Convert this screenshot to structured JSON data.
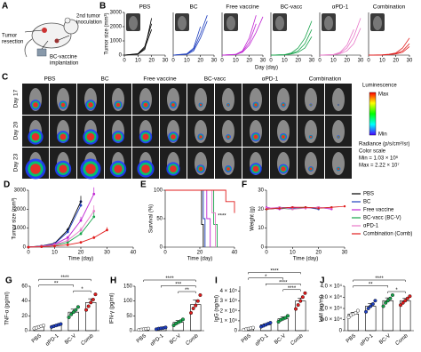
{
  "panel_a": {
    "label": "A",
    "notes": [
      [
        "Tumor",
        "resection"
      ],
      [
        "2nd tumor",
        "inoculation"
      ],
      [
        "BC-vaccine",
        "implantation"
      ]
    ]
  },
  "panel_b": {
    "label": "B",
    "y_label": "Tumor size (mm³)",
    "x_label": "Day (day)"
  },
  "panel_c": {
    "label": "C",
    "columns": [
      "PBS",
      "BC",
      "Free vaccine",
      "BC-vacc",
      "αPD-1",
      "Combination"
    ],
    "rows": [
      "Day 17",
      "Day 20",
      "Day 23"
    ],
    "scale": {
      "title": "Luminescence",
      "max": "Max",
      "min": "Min",
      "unit": "Radiance (p/s/cm²/sr)",
      "color_scale": "Color scale",
      "range_min": "Min = 1.03 × 10⁶",
      "range_max": "Max = 2.22 × 10⁷"
    }
  },
  "chart_data": [
    {
      "type": "spaghetti",
      "title": "PBS",
      "color": "#000000",
      "x": [
        0,
        10,
        15,
        20,
        25,
        30
      ],
      "xlim": [
        0,
        30
      ],
      "xticks": [
        0,
        10,
        20,
        30
      ],
      "ylim": [
        0,
        3000
      ],
      "yticks": [
        0,
        1000,
        2000,
        3000
      ],
      "series": [
        {
          "values": [
            0,
            100,
            600,
            2200,
            null,
            null
          ]
        },
        {
          "values": [
            0,
            80,
            500,
            1800,
            null,
            null
          ]
        },
        {
          "values": [
            0,
            60,
            400,
            2600,
            null,
            null
          ]
        }
      ]
    },
    {
      "type": "spaghetti",
      "title": "BC",
      "color": "#1f3fbf",
      "x": [
        0,
        10,
        15,
        20,
        25,
        30
      ],
      "xlim": [
        0,
        30
      ],
      "xticks": [
        0,
        10,
        20,
        30
      ],
      "ylim": [
        0,
        3000
      ],
      "series": [
        {
          "values": [
            0,
            90,
            500,
            2000,
            null,
            null
          ]
        },
        {
          "values": [
            0,
            70,
            400,
            1500,
            2800,
            null
          ]
        },
        {
          "values": [
            0,
            50,
            300,
            1200,
            2400,
            null
          ]
        }
      ]
    },
    {
      "type": "spaghetti",
      "title": "Free vaccine",
      "color": "#c026d3",
      "x": [
        0,
        10,
        15,
        20,
        25,
        30
      ],
      "xlim": [
        0,
        30
      ],
      "xticks": [
        0,
        10,
        20,
        30
      ],
      "ylim": [
        0,
        3000
      ],
      "series": [
        {
          "values": [
            0,
            50,
            300,
            1200,
            2800,
            null
          ]
        },
        {
          "values": [
            0,
            40,
            250,
            900,
            2200,
            null
          ]
        },
        {
          "values": [
            0,
            30,
            200,
            700,
            1600,
            2700
          ]
        }
      ]
    },
    {
      "type": "spaghetti",
      "title": "BC-vacc",
      "color": "#16a34a",
      "x": [
        0,
        10,
        15,
        20,
        25,
        30
      ],
      "xlim": [
        0,
        30
      ],
      "xticks": [
        0,
        10,
        20,
        30
      ],
      "ylim": [
        0,
        3000
      ],
      "series": [
        {
          "values": [
            0,
            30,
            150,
            500,
            1200,
            2400
          ]
        },
        {
          "values": [
            0,
            20,
            100,
            300,
            800,
            1800
          ]
        },
        {
          "values": [
            0,
            20,
            80,
            200,
            500,
            1300
          ]
        }
      ]
    },
    {
      "type": "spaghetti",
      "title": "αPD-1",
      "color": "#e879c9",
      "x": [
        0,
        10,
        15,
        20,
        25,
        30
      ],
      "xlim": [
        0,
        30
      ],
      "xticks": [
        0,
        10,
        20,
        30
      ],
      "ylim": [
        0,
        3000
      ],
      "series": [
        {
          "values": [
            0,
            40,
            200,
            700,
            1800,
            null
          ]
        },
        {
          "values": [
            0,
            30,
            150,
            500,
            1300,
            2600
          ]
        },
        {
          "values": [
            0,
            20,
            100,
            300,
            800,
            1900
          ]
        }
      ]
    },
    {
      "type": "spaghetti",
      "title": "Combination",
      "color": "#e11d1d",
      "x": [
        0,
        10,
        15,
        20,
        25,
        30
      ],
      "xlim": [
        0,
        30
      ],
      "xticks": [
        0,
        10,
        20,
        30
      ],
      "ylim": [
        0,
        3000
      ],
      "series": [
        {
          "values": [
            0,
            20,
            60,
            150,
            500,
            1200
          ]
        },
        {
          "values": [
            0,
            10,
            40,
            100,
            300,
            800
          ]
        },
        {
          "values": [
            0,
            10,
            30,
            80,
            200,
            600
          ]
        }
      ]
    },
    {
      "type": "errorline",
      "label": "D",
      "y_label": "Tumor size (mm³)",
      "x_label": "Time (day)",
      "legend": "right",
      "x": [
        0,
        5,
        10,
        15,
        20,
        25,
        30,
        35
      ],
      "xlim": [
        0,
        40
      ],
      "xticks": [
        0,
        10,
        20,
        30,
        40
      ],
      "ylim": [
        0,
        3000
      ],
      "yticks": [
        0,
        1000,
        2000,
        3000
      ],
      "series": [
        {
          "name": "PBS",
          "color": "#000000",
          "values": [
            0,
            60,
            200,
            900,
            2400,
            null,
            null,
            null
          ],
          "errors": [
            0,
            10,
            30,
            120,
            300,
            null,
            null,
            null
          ]
        },
        {
          "name": "BC",
          "color": "#1f3fbf",
          "values": [
            0,
            50,
            180,
            800,
            2200,
            null,
            null,
            null
          ],
          "errors": [
            0,
            10,
            30,
            100,
            280,
            null,
            null,
            null
          ]
        },
        {
          "name": "Free vaccine",
          "color": "#c026d3",
          "values": [
            0,
            40,
            150,
            500,
            1400,
            2800,
            null,
            null
          ],
          "errors": [
            0,
            8,
            25,
            80,
            200,
            350,
            null,
            null
          ]
        },
        {
          "name": "BC-vacc (BC-V)",
          "color": "#16a34a",
          "values": [
            0,
            30,
            100,
            250,
            700,
            1600,
            null,
            null
          ],
          "errors": [
            0,
            5,
            20,
            50,
            120,
            250,
            null,
            null
          ]
        },
        {
          "name": "αPD-1",
          "color": "#e879c9",
          "values": [
            0,
            40,
            120,
            350,
            900,
            1900,
            null,
            null
          ],
          "errors": [
            0,
            8,
            20,
            60,
            150,
            300,
            null,
            null
          ]
        },
        {
          "name": "Combination (Comb)",
          "color": "#e11d1d",
          "values": [
            0,
            20,
            60,
            120,
            250,
            500,
            900,
            null
          ],
          "errors": [
            0,
            5,
            10,
            20,
            50,
            90,
            150,
            null
          ]
        }
      ]
    },
    {
      "type": "step",
      "label": "E",
      "y_label": "Survival (%)",
      "x_label": "Time (day)",
      "annotation": "****",
      "xlim": [
        0,
        40
      ],
      "xticks": [
        0,
        20,
        40
      ],
      "ylim": [
        0,
        100
      ],
      "yticks": [
        0,
        50,
        100
      ],
      "series": [
        {
          "color": "#000000",
          "x": [
            0,
            20,
            21,
            22
          ],
          "values": [
            100,
            100,
            40,
            0
          ]
        },
        {
          "color": "#1f3fbf",
          "x": [
            0,
            21,
            22,
            23
          ],
          "values": [
            100,
            100,
            50,
            0
          ]
        },
        {
          "color": "#c026d3",
          "x": [
            0,
            22,
            24,
            26
          ],
          "values": [
            100,
            100,
            50,
            0
          ]
        },
        {
          "color": "#16a34a",
          "x": [
            0,
            26,
            28,
            30
          ],
          "values": [
            100,
            100,
            40,
            0
          ]
        },
        {
          "color": "#e879c9",
          "x": [
            0,
            25,
            27,
            29
          ],
          "values": [
            100,
            100,
            60,
            0
          ]
        },
        {
          "color": "#e11d1d",
          "x": [
            0,
            30,
            35,
            40
          ],
          "values": [
            100,
            100,
            80,
            60
          ]
        }
      ]
    },
    {
      "type": "line",
      "label": "F",
      "y_label": "Weight (g)",
      "x_label": "Time (day)",
      "x": [
        0,
        5,
        10,
        15,
        20,
        25,
        30
      ],
      "xlim": [
        0,
        30
      ],
      "xticks": [
        0,
        10,
        20,
        30
      ],
      "ylim": [
        0,
        30
      ],
      "yticks": [
        0,
        10,
        20,
        30
      ],
      "series": [
        {
          "color": "#000000",
          "values": [
            20,
            20.5,
            21,
            20.5,
            21,
            null,
            null
          ]
        },
        {
          "color": "#1f3fbf",
          "values": [
            20,
            21,
            20.5,
            21,
            20,
            null,
            null
          ]
        },
        {
          "color": "#c026d3",
          "values": [
            21,
            20,
            21,
            20.5,
            21,
            20,
            null
          ]
        },
        {
          "color": "#16a34a",
          "values": [
            20,
            20.5,
            20,
            21,
            20.5,
            21,
            null
          ]
        },
        {
          "color": "#e879c9",
          "values": [
            20.5,
            21,
            20,
            20.5,
            21,
            20.5,
            null
          ]
        },
        {
          "color": "#e11d1d",
          "values": [
            20,
            20.5,
            21,
            21,
            20.5,
            21,
            21.5
          ]
        }
      ]
    },
    {
      "type": "dotbar",
      "label": "G",
      "y_label": "TNF-α (pg/ml)",
      "categories": [
        "PBS",
        "αPD-1",
        "BC-V",
        "Comb"
      ],
      "colors": [
        "#ffffff",
        "#1f3fbf",
        "#16a34a",
        "#e11d1d"
      ],
      "values": [
        5,
        7,
        25,
        38
      ],
      "errors": [
        1,
        1,
        4,
        5
      ],
      "points": [
        [
          3,
          4,
          5,
          6,
          7
        ],
        [
          5,
          6,
          7,
          8,
          9
        ],
        [
          18,
          22,
          25,
          28,
          32
        ],
        [
          28,
          33,
          38,
          42,
          49
        ]
      ],
      "ylim": [
        0,
        60
      ],
      "yticks": [
        0,
        20,
        40,
        60
      ],
      "annotations": [
        {
          "text": "****",
          "between": [
            "PBS",
            "Comb"
          ]
        },
        {
          "text": "**",
          "between": [
            "PBS",
            "BC-V"
          ]
        },
        {
          "text": "*",
          "between": [
            "BC-V",
            "Comb"
          ]
        }
      ]
    },
    {
      "type": "dotbar",
      "label": "H",
      "y_label": "IFN-γ (pg/ml)",
      "categories": [
        "PBS",
        "αPD-1",
        "BC-V",
        "Comb"
      ],
      "colors": [
        "#ffffff",
        "#1f3fbf",
        "#16a34a",
        "#e11d1d"
      ],
      "values": [
        5,
        8,
        28,
        88
      ],
      "errors": [
        1,
        2,
        6,
        15
      ],
      "points": [
        [
          3,
          4,
          5,
          6,
          7
        ],
        [
          5,
          7,
          8,
          9,
          11
        ],
        [
          18,
          24,
          28,
          32,
          38
        ],
        [
          60,
          75,
          85,
          100,
          120
        ]
      ],
      "ylim": [
        0,
        150
      ],
      "yticks": [
        0,
        50,
        100,
        150
      ],
      "annotations": [
        {
          "text": "****",
          "between": [
            "PBS",
            "Comb"
          ]
        },
        {
          "text": "***",
          "between": [
            "αPD-1",
            "Comb"
          ]
        },
        {
          "text": "**",
          "between": [
            "BC-V",
            "Comb"
          ]
        }
      ]
    },
    {
      "type": "dotbar",
      "label": "I",
      "y_label": "IgG (ng/ml)",
      "categories": [
        "PBS",
        "αPD-1",
        "BC-V",
        "Comb"
      ],
      "colors": [
        "#ffffff",
        "#1f3fbf",
        "#16a34a",
        "#e11d1d"
      ],
      "values": [
        20000,
        60000,
        120000,
        300000
      ],
      "errors": [
        5000,
        10000,
        20000,
        30000
      ],
      "points": [
        [
          10000,
          15000,
          20000,
          25000,
          30000
        ],
        [
          40000,
          50000,
          60000,
          70000,
          80000
        ],
        [
          90000,
          110000,
          120000,
          130000,
          150000
        ],
        [
          220000,
          260000,
          300000,
          340000,
          380000
        ]
      ],
      "ylim": [
        0,
        450000
      ],
      "yticks": [
        0,
        {
          "value": 100000,
          "label": "1 × 10⁵"
        },
        {
          "value": 200000,
          "label": "2 × 10⁵"
        },
        {
          "value": 300000,
          "label": "3 × 10⁵"
        },
        {
          "value": 400000,
          "label": "4 × 10⁵"
        }
      ],
      "annotations": [
        {
          "text": "****",
          "between": [
            "PBS",
            "Comb"
          ]
        },
        {
          "text": "*",
          "between": [
            "PBS",
            "BC-V"
          ]
        },
        {
          "text": "****",
          "between": [
            "αPD-1",
            "Comb"
          ]
        },
        {
          "text": "****",
          "between": [
            "BC-V",
            "Comb"
          ]
        }
      ]
    },
    {
      "type": "dotbar",
      "label": "J",
      "y_label": "IgM (ng/ml)",
      "categories": [
        "PBS",
        "αPD-1",
        "BC-V",
        "Comb"
      ],
      "colors": [
        "#ffffff",
        "#1f3fbf",
        "#16a34a",
        "#e11d1d"
      ],
      "values": [
        15000,
        22000,
        27000,
        27000
      ],
      "errors": [
        1500,
        2500,
        2500,
        2000
      ],
      "points": [
        [
          12000,
          14000,
          15000,
          16000,
          18000
        ],
        [
          17000,
          20000,
          22000,
          24000,
          27000
        ],
        [
          22000,
          25000,
          27000,
          29000,
          32000
        ],
        [
          23000,
          25000,
          27000,
          29000,
          31000
        ]
      ],
      "ylim": [
        0,
        40000
      ],
      "yticks": [
        0,
        {
          "value": 10000,
          "label": "1.0 × 10⁴"
        },
        {
          "value": 20000,
          "label": "2.0 × 10⁴"
        },
        {
          "value": 30000,
          "label": "3.0 × 10⁴"
        },
        {
          "value": 40000,
          "label": "4.0 × 10⁴"
        }
      ],
      "annotations": [
        {
          "text": "****",
          "between": [
            "PBS",
            "Comb"
          ]
        },
        {
          "text": "**",
          "between": [
            "PBS",
            "BC-V"
          ]
        },
        {
          "text": "*",
          "between": [
            "BC-V",
            "Comb"
          ]
        }
      ]
    }
  ]
}
